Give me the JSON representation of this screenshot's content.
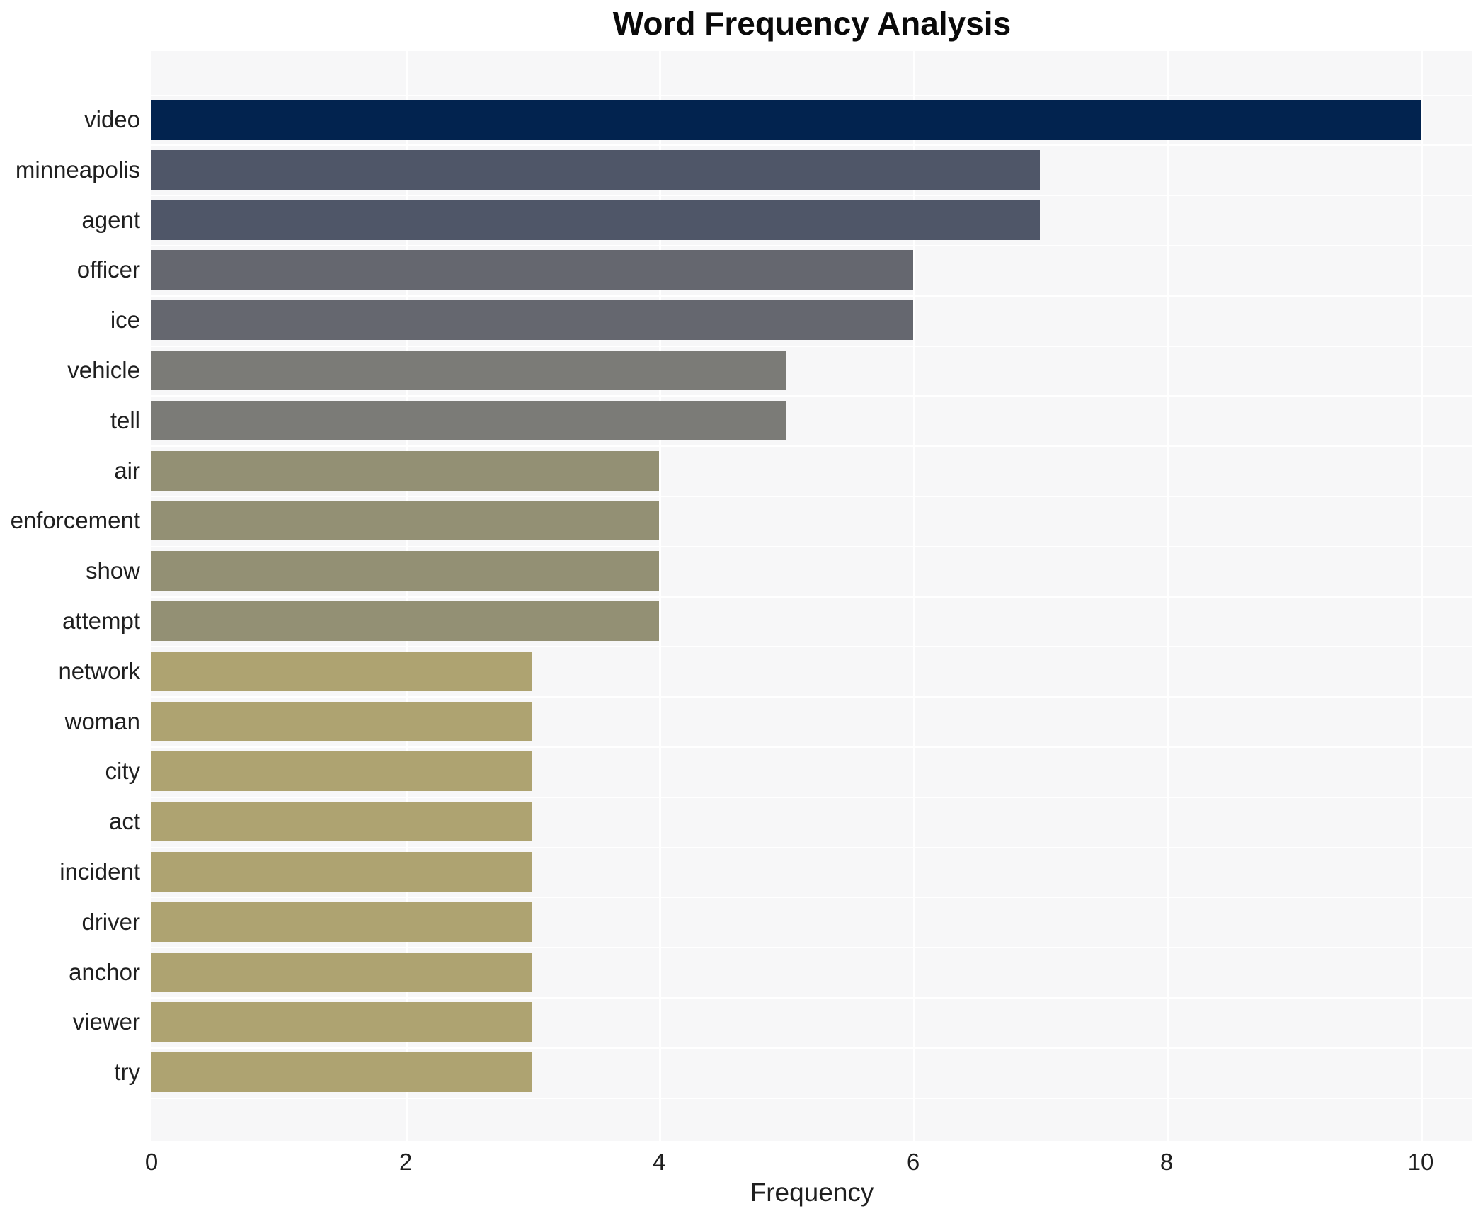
{
  "chart_data": {
    "type": "bar",
    "orientation": "horizontal",
    "title": "Word Frequency Analysis",
    "xlabel": "Frequency",
    "ylabel": "",
    "categories": [
      "video",
      "minneapolis",
      "agent",
      "officer",
      "ice",
      "vehicle",
      "tell",
      "air",
      "enforcement",
      "show",
      "attempt",
      "network",
      "woman",
      "city",
      "act",
      "incident",
      "driver",
      "anchor",
      "viewer",
      "try"
    ],
    "values": [
      10,
      7,
      7,
      6,
      6,
      5,
      5,
      4,
      4,
      4,
      4,
      3,
      3,
      3,
      3,
      3,
      3,
      3,
      3,
      3
    ],
    "bar_colors": [
      "#02234f",
      "#4f5668",
      "#4f5668",
      "#65676f",
      "#65676f",
      "#7b7b77",
      "#7b7b77",
      "#939074",
      "#939074",
      "#939074",
      "#939074",
      "#aea371",
      "#aea371",
      "#aea371",
      "#aea371",
      "#aea371",
      "#aea371",
      "#aea371",
      "#aea371",
      "#aea371"
    ],
    "xlim": [
      0,
      10.4
    ],
    "xticks": [
      0,
      2,
      4,
      6,
      8,
      10
    ],
    "grid": true,
    "legend_position": "none",
    "colors": {
      "page_bg": "#ffffff",
      "plot_bg": "#f7f7f8",
      "grid": "#ffffff",
      "tick_text": "#1f1f1f",
      "title_text": "#0a0a0a"
    }
  }
}
